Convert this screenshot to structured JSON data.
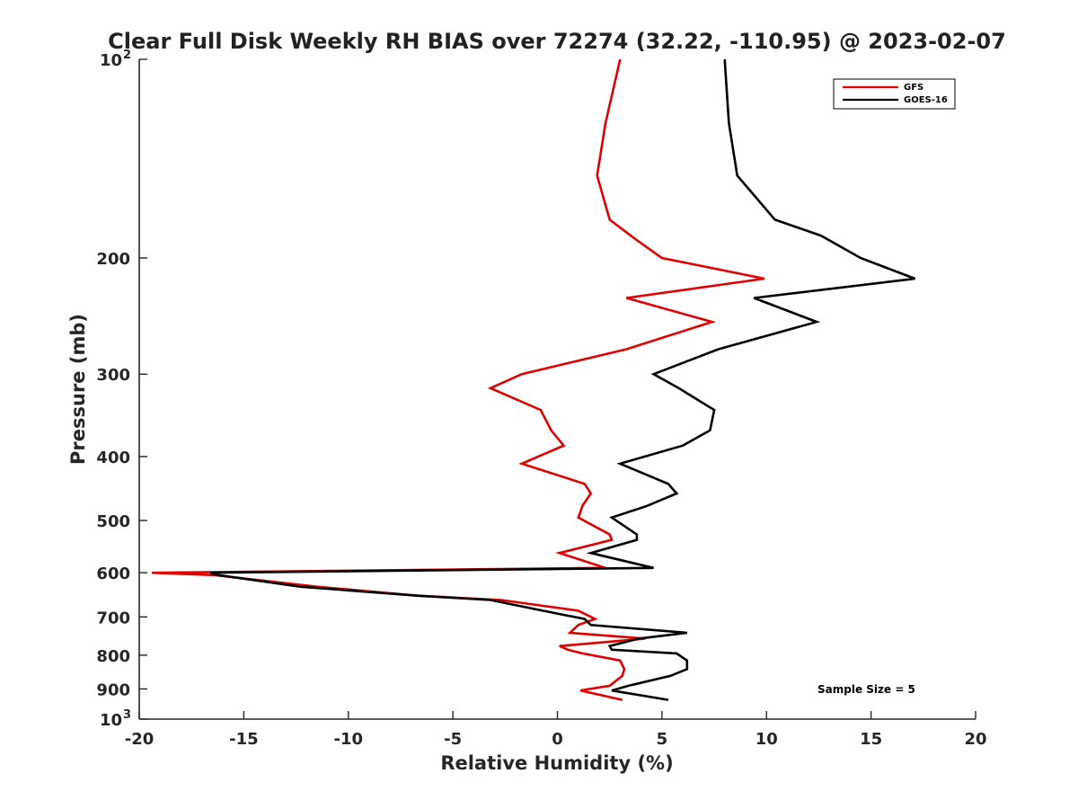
{
  "chart_data": {
    "type": "line",
    "title": "Clear Full Disk Weekly RH BIAS over 72274 (32.22, -110.95) @ 2023-02-07",
    "xlabel": "Relative Humidity (%)",
    "ylabel": "Pressure (mb)",
    "xlim": [
      -20,
      20
    ],
    "ylim": [
      100,
      1000
    ],
    "y_scale": "log",
    "y_reversed": true,
    "grid": false,
    "legend_position": "top-right",
    "x_ticks": [
      "-20",
      "-15",
      "-10",
      "-5",
      "0",
      "5",
      "10",
      "15",
      "20"
    ],
    "x_tick_values": [
      -20,
      -15,
      -10,
      -5,
      0,
      5,
      10,
      15,
      20
    ],
    "y_ticks": [
      {
        "value": 100,
        "base": "10",
        "exp": "2"
      },
      {
        "value": 200,
        "label": "200"
      },
      {
        "value": 300,
        "label": "300"
      },
      {
        "value": 400,
        "label": "400"
      },
      {
        "value": 500,
        "label": "500"
      },
      {
        "value": 600,
        "label": "600"
      },
      {
        "value": 700,
        "label": "700"
      },
      {
        "value": 800,
        "label": "800"
      },
      {
        "value": 900,
        "label": "900"
      },
      {
        "value": 1000,
        "base": "10",
        "exp": "3"
      }
    ],
    "annotation": "Sample Size = 5",
    "series": [
      {
        "name": "GFS",
        "color": "#e00000",
        "points": [
          [
            3.0,
            100
          ],
          [
            2.3,
            125
          ],
          [
            1.9,
            150
          ],
          [
            2.5,
            175
          ],
          [
            3.7,
            187
          ],
          [
            5.0,
            200
          ],
          [
            9.9,
            215
          ],
          [
            3.3,
            230
          ],
          [
            7.4,
            250
          ],
          [
            3.3,
            275
          ],
          [
            -1.7,
            300
          ],
          [
            -3.2,
            315
          ],
          [
            -0.8,
            340
          ],
          [
            -0.3,
            365
          ],
          [
            0.3,
            385
          ],
          [
            -1.7,
            410
          ],
          [
            1.3,
            440
          ],
          [
            1.6,
            455
          ],
          [
            1.2,
            475
          ],
          [
            1.0,
            495
          ],
          [
            2.5,
            525
          ],
          [
            2.6,
            535
          ],
          [
            0.1,
            560
          ],
          [
            2.3,
            590
          ],
          [
            -19.4,
            600
          ],
          [
            -16.4,
            605
          ],
          [
            -11.5,
            630
          ],
          [
            -6.7,
            650
          ],
          [
            -2.7,
            660
          ],
          [
            1.0,
            685
          ],
          [
            1.8,
            705
          ],
          [
            1.0,
            720
          ],
          [
            0.6,
            740
          ],
          [
            4.2,
            755
          ],
          [
            0.1,
            775
          ],
          [
            0.5,
            785
          ],
          [
            1.2,
            795
          ],
          [
            3.0,
            815
          ],
          [
            3.2,
            840
          ],
          [
            3.1,
            860
          ],
          [
            2.5,
            890
          ],
          [
            1.1,
            905
          ],
          [
            3.1,
            935
          ]
        ]
      },
      {
        "name": "GOES-16",
        "color": "#000000",
        "points": [
          [
            8.0,
            100
          ],
          [
            8.2,
            125
          ],
          [
            8.6,
            150
          ],
          [
            10.4,
            175
          ],
          [
            12.6,
            185
          ],
          [
            14.5,
            200
          ],
          [
            17.1,
            215
          ],
          [
            9.4,
            230
          ],
          [
            12.4,
            250
          ],
          [
            7.7,
            275
          ],
          [
            4.6,
            300
          ],
          [
            5.8,
            315
          ],
          [
            7.5,
            340
          ],
          [
            7.3,
            365
          ],
          [
            6.0,
            385
          ],
          [
            3.0,
            410
          ],
          [
            5.3,
            440
          ],
          [
            5.7,
            455
          ],
          [
            4.3,
            475
          ],
          [
            2.6,
            495
          ],
          [
            3.8,
            525
          ],
          [
            3.8,
            535
          ],
          [
            1.6,
            560
          ],
          [
            4.6,
            590
          ],
          [
            -16.6,
            600
          ],
          [
            -16.2,
            605
          ],
          [
            -12.3,
            630
          ],
          [
            -6.7,
            650
          ],
          [
            -3.2,
            660
          ],
          [
            -0.7,
            685
          ],
          [
            1.3,
            705
          ],
          [
            1.6,
            720
          ],
          [
            6.2,
            740
          ],
          [
            3.9,
            755
          ],
          [
            2.5,
            775
          ],
          [
            2.6,
            785
          ],
          [
            5.7,
            795
          ],
          [
            6.2,
            815
          ],
          [
            6.2,
            840
          ],
          [
            5.4,
            860
          ],
          [
            3.4,
            890
          ],
          [
            2.6,
            905
          ],
          [
            5.3,
            935
          ]
        ]
      }
    ]
  }
}
